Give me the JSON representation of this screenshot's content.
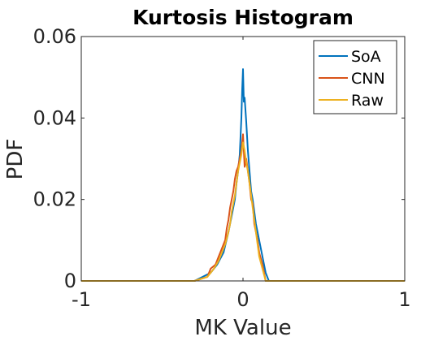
{
  "chart_data": {
    "type": "line",
    "title": "Kurtosis Histogram",
    "xlabel": "MK Value",
    "ylabel": "PDF",
    "xlim": [
      -1,
      1
    ],
    "ylim": [
      0,
      0.06
    ],
    "xticks": [
      -1,
      0,
      1
    ],
    "xtick_labels": [
      "-1",
      "0",
      "1"
    ],
    "yticks": [
      0,
      0.02,
      0.04,
      0.06
    ],
    "ytick_labels": [
      "0",
      "0.02",
      "0.04",
      "0.06"
    ],
    "grid": false,
    "legend_position": "top-right",
    "series": [
      {
        "name": "SoA",
        "color": "#0072BD",
        "x": [
          -1,
          -0.3,
          -0.2,
          -0.16,
          -0.12,
          -0.09,
          -0.07,
          -0.05,
          -0.04,
          -0.03,
          -0.02,
          -0.01,
          -0.005,
          0,
          0.005,
          0.01,
          0.02,
          0.03,
          0.04,
          0.05,
          0.06,
          0.08,
          0.1,
          0.12,
          0.14,
          0.16,
          0.3,
          1
        ],
        "y": [
          0,
          0,
          0.002,
          0.004,
          0.007,
          0.012,
          0.016,
          0.02,
          0.024,
          0.027,
          0.031,
          0.04,
          0.047,
          0.052,
          0.044,
          0.045,
          0.039,
          0.032,
          0.027,
          0.022,
          0.02,
          0.014,
          0.01,
          0.006,
          0.002,
          0,
          0,
          0
        ]
      },
      {
        "name": "CNN",
        "color": "#D95319",
        "x": [
          -1,
          -0.3,
          -0.22,
          -0.2,
          -0.17,
          -0.15,
          -0.13,
          -0.11,
          -0.1,
          -0.09,
          -0.08,
          -0.07,
          -0.06,
          -0.05,
          -0.04,
          -0.03,
          -0.02,
          -0.01,
          0,
          0.01,
          0.02,
          0.03,
          0.04,
          0.05,
          0.06,
          0.07,
          0.08,
          0.09,
          0.1,
          0.12,
          0.14,
          0.3,
          1
        ],
        "y": [
          0,
          0,
          0.001,
          0.003,
          0.004,
          0.006,
          0.008,
          0.01,
          0.013,
          0.015,
          0.018,
          0.02,
          0.022,
          0.025,
          0.027,
          0.028,
          0.03,
          0.032,
          0.036,
          0.028,
          0.03,
          0.027,
          0.024,
          0.02,
          0.019,
          0.014,
          0.012,
          0.01,
          0.007,
          0.004,
          0,
          0,
          0
        ]
      },
      {
        "name": "Raw",
        "color": "#EDB120",
        "x": [
          -1,
          -0.3,
          -0.22,
          -0.18,
          -0.15,
          -0.13,
          -0.11,
          -0.09,
          -0.08,
          -0.07,
          -0.06,
          -0.05,
          -0.04,
          -0.03,
          -0.02,
          -0.01,
          0,
          0.01,
          0.02,
          0.03,
          0.04,
          0.05,
          0.06,
          0.07,
          0.08,
          0.09,
          0.1,
          0.12,
          0.14,
          0.3,
          1
        ],
        "y": [
          0,
          0,
          0.001,
          0.003,
          0.005,
          0.007,
          0.009,
          0.012,
          0.014,
          0.017,
          0.019,
          0.021,
          0.024,
          0.027,
          0.029,
          0.031,
          0.034,
          0.032,
          0.029,
          0.027,
          0.024,
          0.021,
          0.018,
          0.015,
          0.012,
          0.009,
          0.006,
          0.003,
          0,
          0,
          0
        ]
      }
    ]
  }
}
